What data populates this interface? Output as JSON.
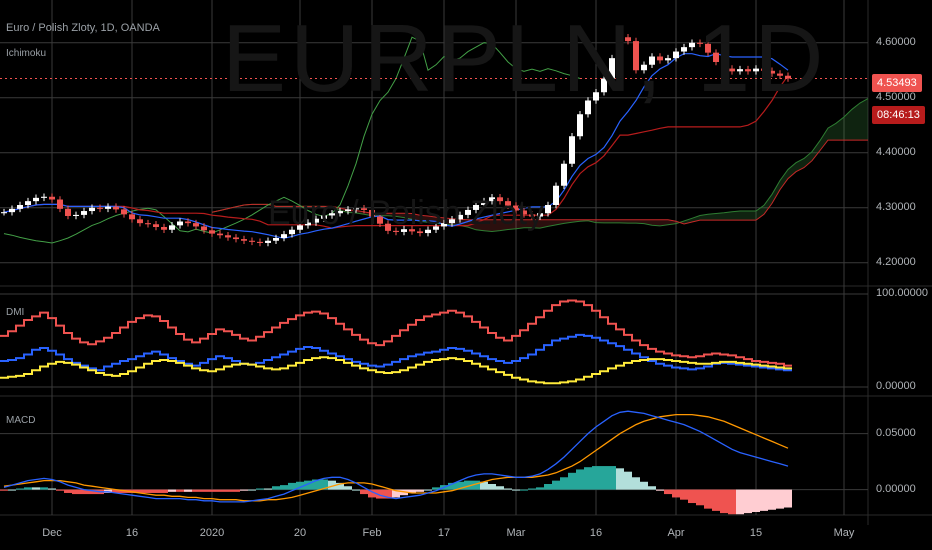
{
  "header": {
    "title": "Euro / Polish Zloty, 1D, OANDA",
    "indicator": "Ichimoku"
  },
  "watermark": {
    "symbol": "EURPLN, 1D",
    "description": "Euro / Polish Zloty"
  },
  "price_tags": {
    "last_price": "4.53493",
    "countdown": "08:46:13"
  },
  "panes": {
    "dmi": "DMI",
    "macd": "MACD"
  },
  "x_axis": [
    "Dec",
    "16",
    "2020",
    "20",
    "Feb",
    "17",
    "Mar",
    "16",
    "Apr",
    "15",
    "May"
  ],
  "colors": {
    "up": "#ffffff",
    "down": "#ef5350",
    "tenkan": "#2962ff",
    "kijun": "#b71c1c",
    "chikou": "#43a047",
    "span_a": "#2e7d32",
    "span_b": "#c62828",
    "di_plus": "#2962ff",
    "di_minus": "#ef5350",
    "adx": "#ffeb3b",
    "macd": "#2962ff",
    "signal": "#ff9800"
  },
  "chart_data": [
    {
      "type": "candlestick",
      "title": "Euro / Polish Zloty, 1D, OANDA",
      "y_ticks": [
        "4.60000",
        "4.50000",
        "4.40000",
        "4.30000",
        "4.20000"
      ],
      "ylim": [
        4.165,
        4.645
      ],
      "last_price": 4.53493,
      "series": [
        {
          "name": "Close",
          "values": [
            4.292,
            4.298,
            4.305,
            4.312,
            4.318,
            4.32,
            4.315,
            4.298,
            4.285,
            4.287,
            4.294,
            4.3,
            4.298,
            4.302,
            4.297,
            4.288,
            4.279,
            4.272,
            4.27,
            4.265,
            4.26,
            4.268,
            4.275,
            4.272,
            4.266,
            4.259,
            4.253,
            4.25,
            4.246,
            4.243,
            4.24,
            4.238,
            4.236,
            4.24,
            4.245,
            4.252,
            4.26,
            4.268,
            4.273,
            4.28,
            4.286,
            4.29,
            4.294,
            4.297,
            4.299,
            4.296,
            4.284,
            4.271,
            4.258,
            4.256,
            4.261,
            4.257,
            4.254,
            4.26,
            4.266,
            4.272,
            4.279,
            4.287,
            4.296,
            4.305,
            4.312,
            4.319,
            4.312,
            4.304,
            4.295,
            4.288,
            4.284,
            4.29,
            4.305,
            4.34,
            4.38,
            4.43,
            4.47,
            4.495,
            4.51,
            4.535,
            4.572,
            4.61,
            4.603,
            4.55,
            4.56,
            4.575,
            4.568,
            4.572,
            4.584,
            4.592,
            4.6,
            4.598,
            4.582,
            4.565,
            4.553,
            4.548,
            4.552,
            4.548,
            4.553,
            4.549,
            4.544,
            4.54,
            4.535
          ]
        }
      ]
    },
    {
      "type": "line",
      "title": "DMI",
      "y_ticks": [
        "100.00000",
        "0.00000"
      ],
      "ylim": [
        0,
        100
      ],
      "series": [
        {
          "name": "+DI",
          "values": [
            28,
            29,
            31,
            35,
            40,
            42,
            39,
            35,
            30,
            26,
            23,
            20,
            18,
            22,
            25,
            28,
            30,
            33,
            36,
            38,
            35,
            31,
            28,
            25,
            23,
            26,
            30,
            33,
            31,
            28,
            25,
            24,
            26,
            29,
            32,
            35,
            38,
            41,
            43,
            42,
            39,
            36,
            33,
            30,
            27,
            25,
            23,
            22,
            24,
            27,
            30,
            33,
            35,
            37,
            38,
            40,
            42,
            41,
            39,
            36,
            33,
            30,
            28,
            26,
            28,
            31,
            35,
            40,
            45,
            50,
            52,
            54,
            56,
            55,
            53,
            50,
            47,
            44,
            40,
            36,
            32,
            28,
            25,
            23,
            21,
            20,
            19,
            20,
            22,
            25,
            26,
            25,
            24,
            23,
            22,
            21,
            20,
            19,
            18
          ]
        },
        {
          "name": "-DI",
          "values": [
            55,
            60,
            66,
            72,
            76,
            80,
            74,
            66,
            58,
            52,
            48,
            46,
            49,
            53,
            58,
            64,
            70,
            74,
            77,
            76,
            71,
            64,
            57,
            51,
            48,
            52,
            57,
            62,
            60,
            56,
            52,
            50,
            54,
            59,
            64,
            69,
            73,
            77,
            80,
            81,
            79,
            74,
            68,
            62,
            56,
            51,
            47,
            45,
            49,
            55,
            61,
            67,
            72,
            76,
            78,
            80,
            82,
            80,
            76,
            70,
            64,
            58,
            53,
            50,
            55,
            61,
            68,
            75,
            82,
            88,
            92,
            93,
            92,
            88,
            82,
            75,
            68,
            62,
            56,
            50,
            45,
            41,
            38,
            36,
            34,
            33,
            32,
            33,
            35,
            36,
            35,
            34,
            32,
            30,
            28,
            27,
            26,
            25,
            23
          ]
        },
        {
          "name": "ADX",
          "values": [
            10,
            11,
            12,
            14,
            18,
            22,
            25,
            27,
            26,
            24,
            21,
            18,
            15,
            13,
            12,
            14,
            17,
            21,
            25,
            28,
            29,
            28,
            26,
            23,
            20,
            18,
            17,
            19,
            22,
            24,
            25,
            24,
            22,
            20,
            19,
            20,
            23,
            26,
            29,
            31,
            32,
            31,
            29,
            26,
            23,
            20,
            18,
            16,
            15,
            16,
            18,
            21,
            24,
            27,
            29,
            30,
            31,
            30,
            28,
            25,
            22,
            19,
            16,
            13,
            10,
            8,
            6,
            5,
            4,
            4,
            5,
            6,
            8,
            11,
            14,
            17,
            20,
            23,
            26,
            28,
            29,
            30,
            30,
            29,
            28,
            27,
            26,
            25,
            25,
            26,
            27,
            27,
            26,
            25,
            24,
            23,
            22,
            21,
            20
          ]
        }
      ]
    },
    {
      "type": "line",
      "title": "MACD",
      "y_ticks": [
        "0.05000",
        "0.00000"
      ],
      "ylim": [
        -0.02,
        0.08
      ],
      "series": [
        {
          "name": "MACD",
          "values": [
            0.002,
            0.004,
            0.006,
            0.008,
            0.009,
            0.01,
            0.009,
            0.007,
            0.004,
            0.002,
            0.0,
            -0.001,
            -0.002,
            -0.002,
            -0.003,
            -0.004,
            -0.005,
            -0.006,
            -0.007,
            -0.008,
            -0.008,
            -0.008,
            -0.008,
            -0.009,
            -0.009,
            -0.01,
            -0.01,
            -0.011,
            -0.011,
            -0.011,
            -0.011,
            -0.01,
            -0.009,
            -0.008,
            -0.006,
            -0.004,
            -0.001,
            0.002,
            0.005,
            0.008,
            0.01,
            0.011,
            0.011,
            0.009,
            0.006,
            0.002,
            -0.002,
            -0.005,
            -0.007,
            -0.008,
            -0.007,
            -0.006,
            -0.005,
            -0.003,
            -0.001,
            0.002,
            0.005,
            0.008,
            0.011,
            0.013,
            0.014,
            0.014,
            0.013,
            0.012,
            0.011,
            0.011,
            0.012,
            0.014,
            0.018,
            0.023,
            0.029,
            0.036,
            0.043,
            0.05,
            0.056,
            0.061,
            0.066,
            0.069,
            0.07,
            0.069,
            0.068,
            0.066,
            0.064,
            0.062,
            0.06,
            0.058,
            0.055,
            0.052,
            0.048,
            0.044,
            0.04,
            0.036,
            0.033,
            0.031,
            0.029,
            0.027,
            0.025,
            0.023,
            0.021
          ]
        },
        {
          "name": "Signal",
          "values": [
            0.003,
            0.004,
            0.005,
            0.006,
            0.007,
            0.008,
            0.008,
            0.008,
            0.007,
            0.006,
            0.004,
            0.003,
            0.002,
            0.001,
            0.0,
            -0.001,
            -0.002,
            -0.003,
            -0.004,
            -0.005,
            -0.005,
            -0.006,
            -0.006,
            -0.007,
            -0.007,
            -0.008,
            -0.008,
            -0.009,
            -0.009,
            -0.009,
            -0.01,
            -0.01,
            -0.01,
            -0.009,
            -0.009,
            -0.008,
            -0.007,
            -0.005,
            -0.003,
            -0.001,
            0.001,
            0.003,
            0.005,
            0.006,
            0.006,
            0.006,
            0.005,
            0.003,
            0.001,
            -0.001,
            -0.002,
            -0.003,
            -0.003,
            -0.003,
            -0.003,
            -0.002,
            -0.001,
            0.001,
            0.003,
            0.005,
            0.007,
            0.009,
            0.01,
            0.011,
            0.011,
            0.011,
            0.011,
            0.012,
            0.013,
            0.015,
            0.018,
            0.021,
            0.025,
            0.03,
            0.035,
            0.04,
            0.045,
            0.05,
            0.054,
            0.058,
            0.061,
            0.063,
            0.065,
            0.066,
            0.067,
            0.067,
            0.067,
            0.066,
            0.065,
            0.063,
            0.061,
            0.058,
            0.055,
            0.052,
            0.049,
            0.046,
            0.043,
            0.04,
            0.037
          ]
        }
      ]
    }
  ]
}
